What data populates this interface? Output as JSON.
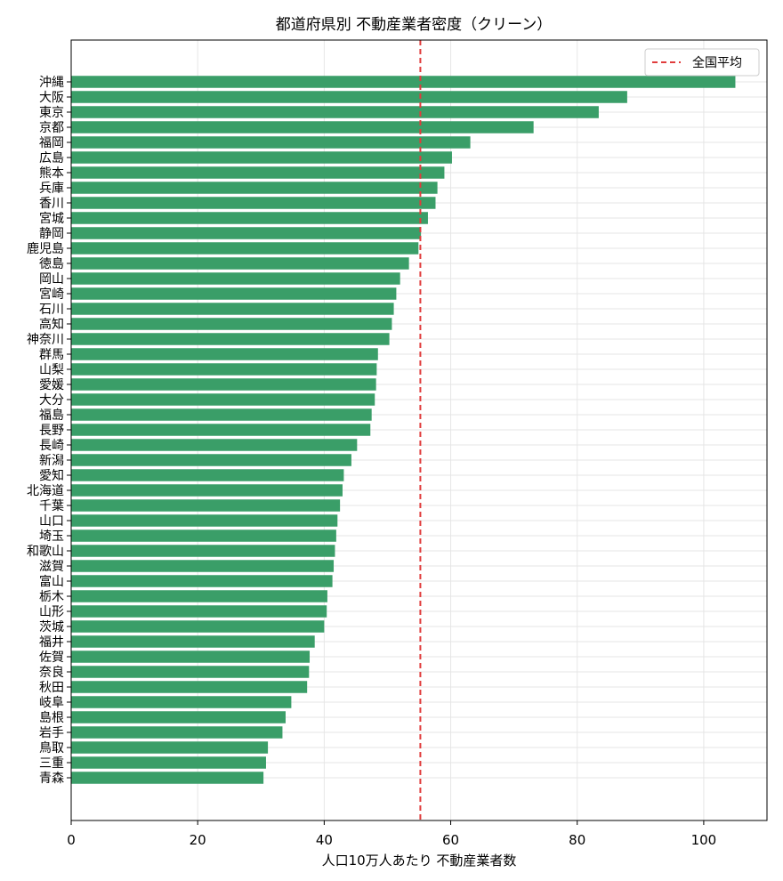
{
  "chart_data": {
    "type": "bar",
    "orientation": "horizontal",
    "title": "都道府県別 不動産業者密度（クリーン）",
    "xlabel": "人口10万人あたり 不動産業者数",
    "ylabel": "",
    "xlim": [
      0,
      110
    ],
    "xticks": [
      0,
      20,
      40,
      60,
      80,
      100
    ],
    "grid": true,
    "legend_position": "top-right",
    "bar_color": "#3a9e68",
    "reference_line": {
      "label": "全国平均",
      "value": 55.2,
      "color": "#e03c3c",
      "style": "dashed"
    },
    "categories": [
      "沖縄",
      "大阪",
      "東京",
      "京都",
      "福岡",
      "広島",
      "熊本",
      "兵庫",
      "香川",
      "宮城",
      "静岡",
      "鹿児島",
      "徳島",
      "岡山",
      "宮崎",
      "石川",
      "高知",
      "神奈川",
      "群馬",
      "山梨",
      "愛媛",
      "大分",
      "福島",
      "長野",
      "長崎",
      "新潟",
      "愛知",
      "北海道",
      "千葉",
      "山口",
      "埼玉",
      "和歌山",
      "滋賀",
      "富山",
      "栃木",
      "山形",
      "茨城",
      "福井",
      "佐賀",
      "奈良",
      "秋田",
      "岐阜",
      "島根",
      "岩手",
      "鳥取",
      "三重",
      "青森"
    ],
    "values": [
      105.0,
      87.9,
      83.4,
      73.1,
      63.1,
      60.2,
      59.0,
      57.9,
      57.6,
      56.4,
      55.3,
      54.9,
      53.4,
      52.0,
      51.4,
      51.0,
      50.7,
      50.3,
      48.5,
      48.3,
      48.2,
      48.0,
      47.5,
      47.3,
      45.2,
      44.3,
      43.1,
      42.9,
      42.5,
      42.1,
      41.9,
      41.7,
      41.5,
      41.3,
      40.5,
      40.4,
      40.0,
      38.5,
      37.7,
      37.6,
      37.3,
      34.8,
      33.9,
      33.4,
      31.1,
      30.8,
      30.4
    ]
  }
}
